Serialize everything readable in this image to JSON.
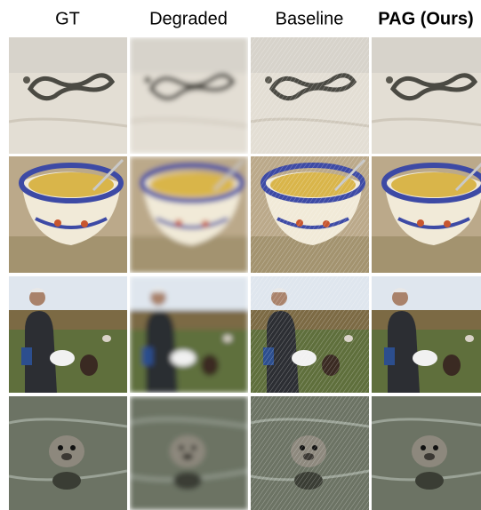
{
  "columns": [
    "GT",
    "Degraded",
    "Baseline",
    "PAG (Ours)"
  ]
}
